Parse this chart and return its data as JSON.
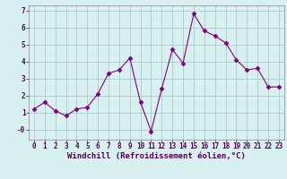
{
  "x": [
    0,
    1,
    2,
    3,
    4,
    5,
    6,
    7,
    8,
    9,
    10,
    11,
    12,
    13,
    14,
    15,
    16,
    17,
    18,
    19,
    20,
    21,
    22,
    23
  ],
  "y": [
    1.2,
    1.6,
    1.1,
    0.8,
    1.2,
    1.3,
    2.1,
    3.3,
    3.5,
    4.2,
    1.6,
    -0.1,
    2.4,
    4.7,
    3.9,
    6.8,
    5.8,
    5.5,
    5.1,
    4.1,
    3.5,
    3.6,
    2.5,
    2.5
  ],
  "line_color": "#800080",
  "marker": "D",
  "marker_size": 2.5,
  "bg_color": "#d8f0f0",
  "grid_color": "#aacccc",
  "xlabel": "Windchill (Refroidissement éolien,°C)",
  "ytick_labels": [
    "-0",
    "1",
    "2",
    "3",
    "4",
    "5",
    "6",
    "7"
  ],
  "ytick_vals": [
    0,
    1,
    2,
    3,
    4,
    5,
    6,
    7
  ],
  "xlim": [
    -0.5,
    23.5
  ],
  "ylim": [
    -0.6,
    7.3
  ],
  "xlabel_fontsize": 6.5,
  "tick_fontsize": 5.5
}
